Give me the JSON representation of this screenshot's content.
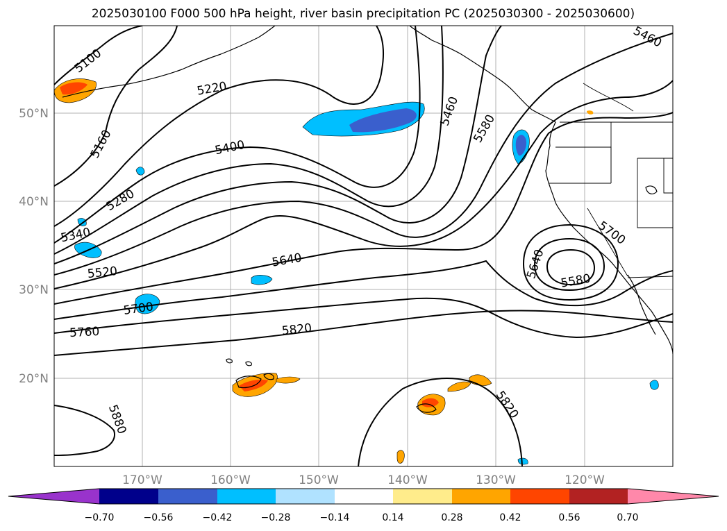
{
  "title": "2025030100 F000 500 hPa height, river basin precipitation PC (2025030300 - 2025030600)",
  "lat_labels": [
    "50°N",
    "40°N",
    "30°N",
    "20°N"
  ],
  "lon_labels": [
    "170°W",
    "160°W",
    "150°W",
    "140°W",
    "130°W",
    "120°W"
  ],
  "contour_labels": [
    "5100",
    "5160",
    "5220",
    "5280",
    "5340",
    "5400",
    "5460",
    "5460",
    "5520",
    "5580",
    "5580",
    "5640",
    "5640",
    "5700",
    "5700",
    "5760",
    "5820",
    "5820",
    "5880"
  ],
  "colorbar": {
    "ticks": [
      "−0.70",
      "−0.56",
      "−0.42",
      "−0.28",
      "−0.14",
      "0.14",
      "0.28",
      "0.42",
      "0.56",
      "0.70"
    ],
    "colors": [
      "#9933cc",
      "#00008b",
      "#3a5fcd",
      "#00bfff",
      "#b0e2ff",
      "#ffffff",
      "#ffec8b",
      "#ffa500",
      "#ff4500",
      "#b22222",
      "#ff88aa"
    ]
  },
  "colors": {
    "contour": "#000000",
    "gridline": "#b0b0b0",
    "tick_label": "#808080"
  }
}
